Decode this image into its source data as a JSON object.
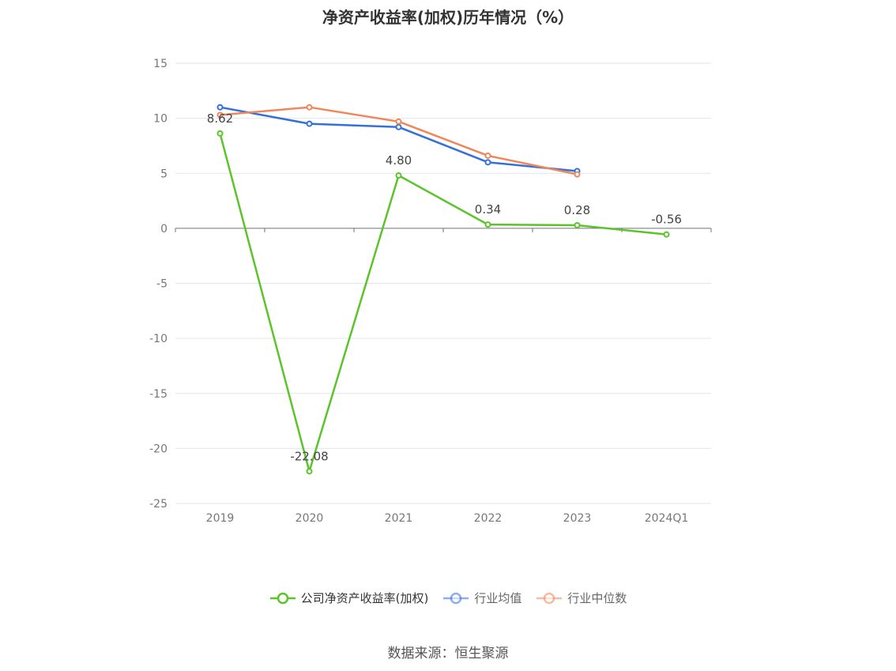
{
  "title": "净资产收益率(加权)历年情况（%）",
  "source": "数据来源：恒生聚源",
  "chart_data": {
    "type": "line",
    "categories": [
      "2019",
      "2020",
      "2021",
      "2022",
      "2023",
      "2024Q1"
    ],
    "y_ticks": [
      "15",
      "10",
      "5",
      "0",
      "-5",
      "-10",
      "-15",
      "-20",
      "-25"
    ],
    "ylim": [
      -25,
      15
    ],
    "grid": true,
    "legend_position": "bottom",
    "series": [
      {
        "name": "公司净资产收益率(加权)",
        "color": "#5bc42a",
        "values": [
          8.62,
          -22.08,
          4.8,
          0.34,
          0.28,
          -0.56
        ],
        "labels": [
          "8.62",
          "-22.08",
          "4.80",
          "0.34",
          "0.28",
          "-0.56"
        ]
      },
      {
        "name": "行业均值",
        "color": "#3370d9",
        "values": [
          11.0,
          9.5,
          9.2,
          6.0,
          5.2,
          null
        ]
      },
      {
        "name": "行业中位数",
        "color": "#f0875a",
        "values": [
          10.3,
          11.0,
          9.7,
          6.6,
          4.9,
          null
        ]
      }
    ]
  }
}
